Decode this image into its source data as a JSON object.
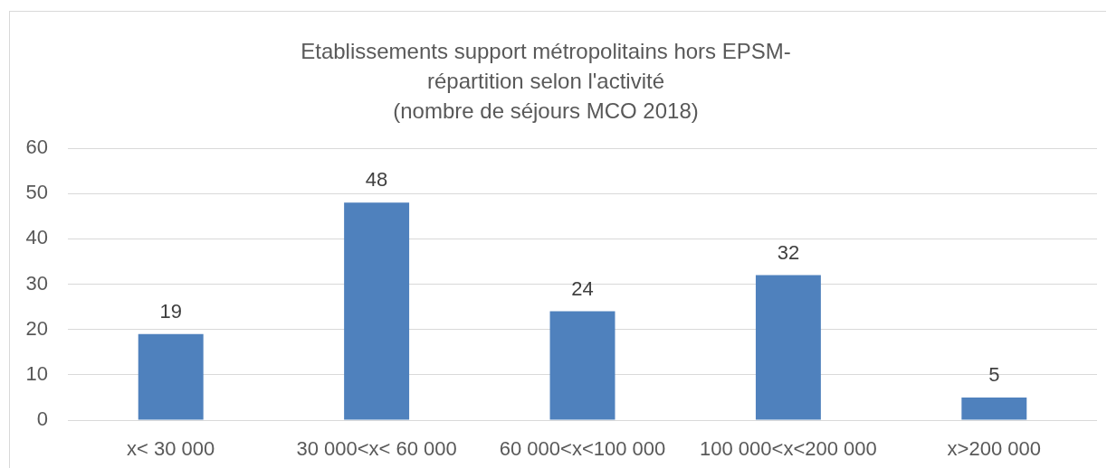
{
  "chart_data": {
    "type": "bar",
    "title": "Etablissements support métropolitains hors EPSM-\nrépartition selon l'activité\n(nombre de séjours MCO 2018)",
    "categories": [
      "x< 30 000",
      "30 000<x< 60 000",
      "60 000<x<100 000",
      "100 000<x<200 000",
      "x>200 000"
    ],
    "values": [
      19,
      48,
      24,
      32,
      5
    ],
    "color": "#4f81bd",
    "ylim": [
      0,
      60
    ],
    "yticks": [
      0,
      10,
      20,
      30,
      40,
      50,
      60
    ],
    "grid": "y",
    "data_labels": true
  }
}
